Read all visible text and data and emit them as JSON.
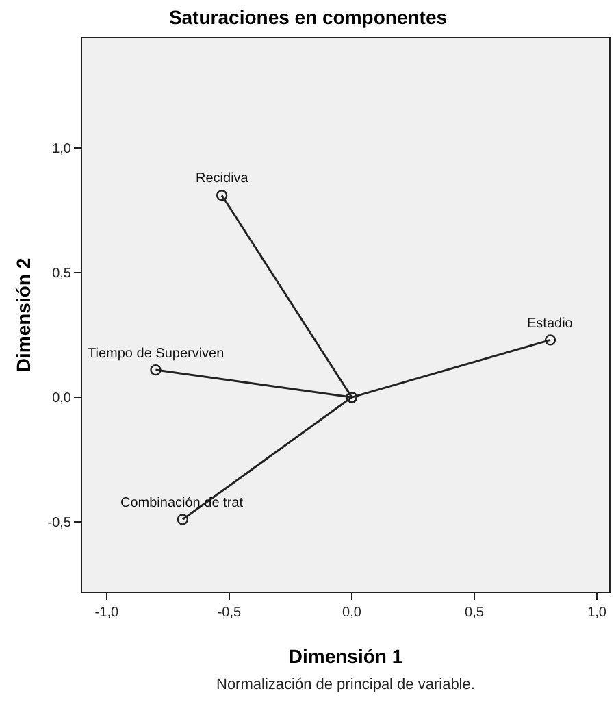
{
  "chart_data": {
    "type": "line",
    "title": "Saturaciones en componentes",
    "xlabel": "Dimensión 1",
    "ylabel": "Dimensión 2",
    "xlim": [
      -1.1,
      1.05
    ],
    "ylim": [
      -0.78,
      1.44
    ],
    "xticks": [
      {
        "value": -1,
        "label": "-1,0"
      },
      {
        "value": -0.5,
        "label": "-0,5"
      },
      {
        "value": 0,
        "label": "0,0"
      },
      {
        "value": 0.5,
        "label": "0,5"
      },
      {
        "value": 1,
        "label": "1,0"
      }
    ],
    "yticks": [
      {
        "value": -0.5,
        "label": "-0,5"
      },
      {
        "value": 0,
        "label": "0,0"
      },
      {
        "value": 0.5,
        "label": "0,5"
      },
      {
        "value": 1,
        "label": "1,0"
      }
    ],
    "series": [
      {
        "color": "#222222",
        "x": [
          0,
          -0.53
        ],
        "values": [
          0,
          0.81
        ]
      },
      {
        "color": "#222222",
        "x": [
          0,
          0.81
        ],
        "values": [
          0,
          0.23
        ]
      },
      {
        "color": "#222222",
        "x": [
          0,
          -0.8
        ],
        "values": [
          0,
          0.11
        ]
      },
      {
        "color": "#222222",
        "x": [
          0,
          -0.69
        ],
        "values": [
          0,
          -0.49
        ]
      }
    ],
    "marker": "circle",
    "line_style": "solid",
    "annotations": [
      {
        "text": "Recidiva",
        "x": -0.53,
        "y": 0.81
      },
      {
        "text": "Estadio",
        "x": 0.81,
        "y": 0.23
      },
      {
        "text": "Tiempo de Superviven",
        "x": -0.8,
        "y": 0.11
      },
      {
        "text": "Combinación de trat",
        "x": -0.69,
        "y": -0.49
      },
      "Normalización de principal de variable."
    ]
  }
}
